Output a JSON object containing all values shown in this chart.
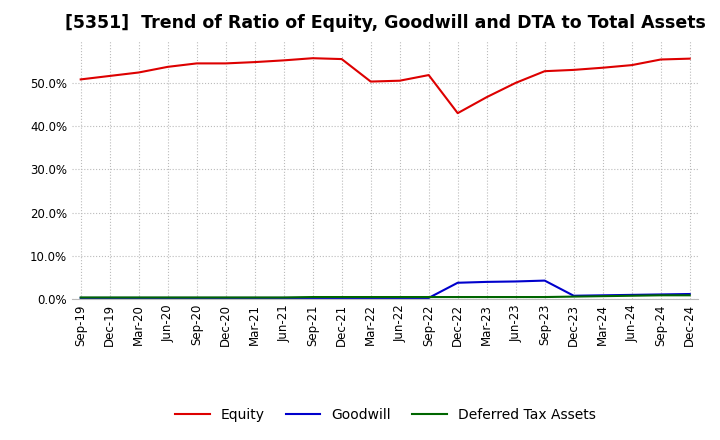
{
  "title": "[5351]  Trend of Ratio of Equity, Goodwill and DTA to Total Assets",
  "x_labels": [
    "Sep-19",
    "Dec-19",
    "Mar-20",
    "Jun-20",
    "Sep-20",
    "Dec-20",
    "Mar-21",
    "Jun-21",
    "Sep-21",
    "Dec-21",
    "Mar-22",
    "Jun-22",
    "Sep-22",
    "Dec-22",
    "Mar-23",
    "Jun-23",
    "Sep-23",
    "Dec-23",
    "Mar-24",
    "Jun-24",
    "Sep-24",
    "Dec-24"
  ],
  "equity": [
    0.508,
    0.516,
    0.524,
    0.537,
    0.545,
    0.545,
    0.548,
    0.552,
    0.557,
    0.555,
    0.503,
    0.505,
    0.518,
    0.43,
    0.467,
    0.5,
    0.527,
    0.53,
    0.535,
    0.541,
    0.554,
    0.556
  ],
  "goodwill": [
    0.003,
    0.003,
    0.003,
    0.003,
    0.003,
    0.003,
    0.003,
    0.003,
    0.003,
    0.003,
    0.003,
    0.003,
    0.003,
    0.038,
    0.04,
    0.041,
    0.043,
    0.008,
    0.009,
    0.01,
    0.011,
    0.012
  ],
  "dta": [
    0.004,
    0.004,
    0.004,
    0.004,
    0.004,
    0.004,
    0.004,
    0.004,
    0.005,
    0.005,
    0.005,
    0.005,
    0.005,
    0.005,
    0.005,
    0.005,
    0.005,
    0.006,
    0.007,
    0.008,
    0.009,
    0.009
  ],
  "equity_color": "#dd0000",
  "goodwill_color": "#0000cc",
  "dta_color": "#006600",
  "ylim": [
    0.0,
    0.6
  ],
  "yticks": [
    0.0,
    0.1,
    0.2,
    0.3,
    0.4,
    0.5
  ],
  "background_color": "#ffffff",
  "grid_color": "#bbbbbb",
  "title_fontsize": 12.5,
  "legend_fontsize": 10,
  "tick_fontsize": 8.5
}
